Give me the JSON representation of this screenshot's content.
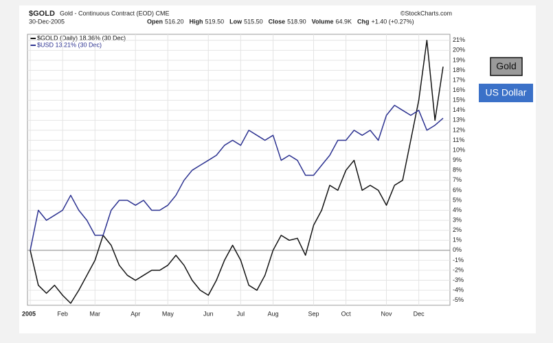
{
  "chart_data": {
    "type": "line",
    "symbol": "$GOLD",
    "title": "Gold - Continuous Contract (EOD) CME",
    "source": "©StockCharts.com",
    "date": "30-Dec-2005",
    "quote": [
      "Open",
      "516.20",
      "High",
      "519.50",
      "Low",
      "515.50",
      "Close",
      "518.90",
      "Volume",
      "64.9K",
      "Chg",
      "+1.40 (+0.27%)"
    ],
    "buttons": [
      "Gold",
      "US Dollar"
    ],
    "categories": [
      "2005",
      null,
      null,
      null,
      "Feb",
      null,
      null,
      null,
      "Mar",
      null,
      null,
      null,
      null,
      "Apr",
      null,
      null,
      null,
      "May",
      null,
      null,
      null,
      null,
      "Jun",
      null,
      null,
      null,
      "Jul",
      null,
      null,
      null,
      "Aug",
      null,
      null,
      null,
      null,
      "Sep",
      null,
      null,
      null,
      "Oct",
      null,
      null,
      null,
      null,
      "Nov",
      null,
      null,
      null,
      "Dec",
      null,
      null,
      null
    ],
    "series": [
      {
        "name": "$GOLD (Daily) 18.36% (30 Dec)",
        "color": "#111111",
        "values": [
          0,
          -3.5,
          -4.3,
          -3.5,
          -4.5,
          -5.3,
          -4,
          -2.5,
          -1,
          1.5,
          0.5,
          -1.5,
          -2.5,
          -3,
          -2.5,
          -2,
          -2,
          -1.5,
          -0.5,
          -1.5,
          -3,
          -4,
          -4.5,
          -3,
          -1,
          0.5,
          -1,
          -3.5,
          -4,
          -2.5,
          0,
          1.5,
          1,
          1.2,
          -0.5,
          2.5,
          4,
          6.5,
          6,
          8,
          9,
          6,
          6.5,
          6,
          4.5,
          6.5,
          7,
          11,
          15,
          21,
          13,
          18.36
        ]
      },
      {
        "name": "$USD 13.21% (30 Dec)",
        "color": "#2b3190",
        "values": [
          0,
          4,
          3,
          3.5,
          4,
          5.5,
          4,
          3,
          1.5,
          1.5,
          4,
          5,
          5,
          4.5,
          5,
          4,
          4,
          4.5,
          5.5,
          7,
          8,
          8.5,
          9,
          9.5,
          10.5,
          11,
          10.5,
          12,
          11.5,
          11,
          11.5,
          9,
          9.5,
          9,
          7.5,
          7.5,
          8.5,
          9.5,
          11,
          11,
          12,
          11.5,
          12,
          11,
          13.5,
          14.5,
          14,
          13.5,
          14,
          12,
          12.5,
          13.21
        ]
      }
    ],
    "hline": 0,
    "ylim": [
      -5.5,
      21.6
    ],
    "yticks": [
      {
        "value": -5,
        "label": "-5%"
      },
      {
        "value": -4,
        "label": "-4%"
      },
      {
        "value": -3,
        "label": "-3%"
      },
      {
        "value": -2,
        "label": "-2%"
      },
      {
        "value": -1,
        "label": "-1%"
      },
      {
        "value": 0,
        "label": "0%"
      },
      {
        "value": 1,
        "label": "1%"
      },
      {
        "value": 2,
        "label": "2%"
      },
      {
        "value": 3,
        "label": "3%"
      },
      {
        "value": 4,
        "label": "4%"
      },
      {
        "value": 5,
        "label": "5%"
      },
      {
        "value": 6,
        "label": "6%"
      },
      {
        "value": 7,
        "label": "7%"
      },
      {
        "value": 8,
        "label": "8%"
      },
      {
        "value": 9,
        "label": "9%"
      },
      {
        "value": 10,
        "label": "10%"
      },
      {
        "value": 11,
        "label": "11%"
      },
      {
        "value": 12,
        "label": "12%"
      },
      {
        "value": 13,
        "label": "13%"
      },
      {
        "value": 14,
        "label": "14%"
      },
      {
        "value": 15,
        "label": "15%"
      },
      {
        "value": 16,
        "label": "16%"
      },
      {
        "value": 17,
        "label": "17%"
      },
      {
        "value": 18,
        "label": "18%"
      },
      {
        "value": 19,
        "label": "19%"
      },
      {
        "value": 20,
        "label": "20%"
      },
      {
        "value": 21,
        "label": "21%"
      }
    ],
    "grid": true
  }
}
